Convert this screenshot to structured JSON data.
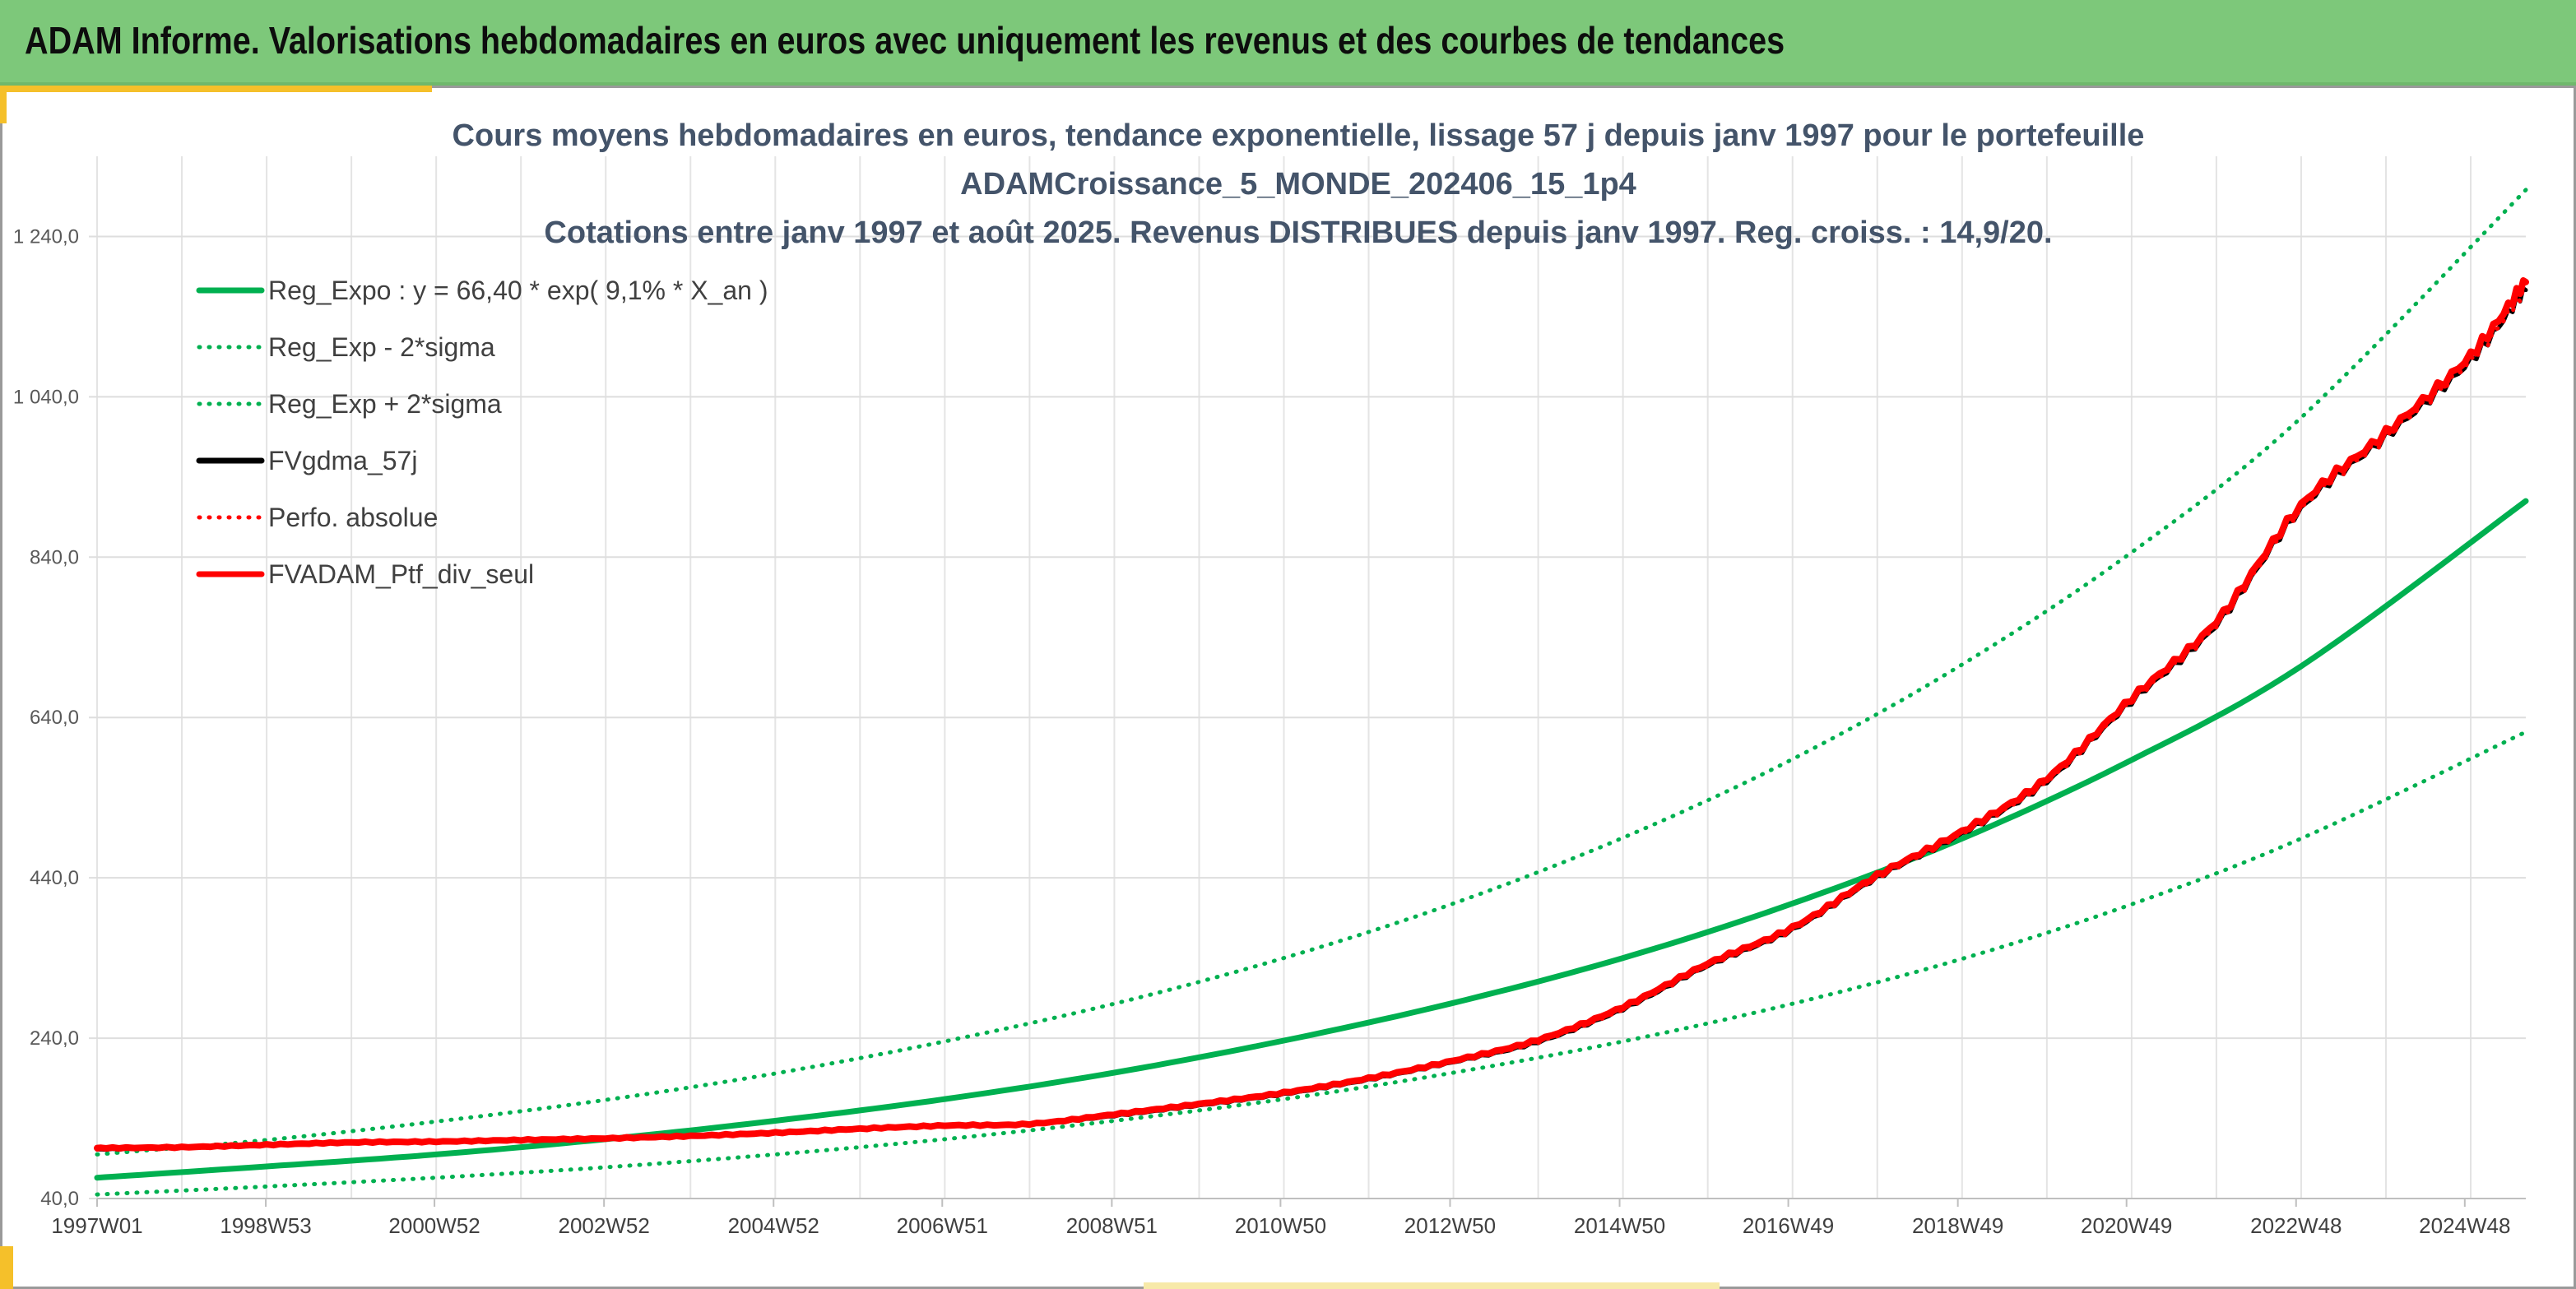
{
  "header": {
    "title": "ADAM Informe. Valorisations hebdomadaires en euros avec uniquement les revenus et des courbes de tendances"
  },
  "colors": {
    "header_bg": "#7dc87a",
    "accent_yellow": "#f5c02a",
    "trend_green": "#00b050",
    "portfolio_red": "#ff0000",
    "smoothed_black": "#000000"
  },
  "chart_data": {
    "type": "line",
    "title_lines": [
      "Cours moyens hebdomadaires en euros, tendance exponentielle, lissage 57 j depuis janv 1997 pour le portefeuille",
      "ADAMCroissance_5_MONDE_202406_15_1p4",
      "Cotations entre janv 1997 et août 2025. Revenus DISTRIBUES depuis janv 1997. Reg. croiss. : 14,9/20."
    ],
    "xlabel": "",
    "ylabel": "",
    "ylim": [
      40,
      1340
    ],
    "xlim": [
      1997.0,
      2025.65
    ],
    "y_ticks": [
      {
        "value": 40,
        "label": "40,0"
      },
      {
        "value": 240,
        "label": "240,0"
      },
      {
        "value": 440,
        "label": "440,0"
      },
      {
        "value": 640,
        "label": "640,0"
      },
      {
        "value": 840,
        "label": "840,0"
      },
      {
        "value": 1040,
        "label": "1 040,0"
      },
      {
        "value": 1240,
        "label": "1 240,0"
      }
    ],
    "x_ticks": [
      {
        "value": 1997.0,
        "label": "1997W01"
      },
      {
        "value": 1998.99,
        "label": "1998W53"
      },
      {
        "value": 2000.98,
        "label": "2000W52"
      },
      {
        "value": 2002.98,
        "label": "2002W52"
      },
      {
        "value": 2004.98,
        "label": "2004W52"
      },
      {
        "value": 2006.97,
        "label": "2006W51"
      },
      {
        "value": 2008.97,
        "label": "2008W51"
      },
      {
        "value": 2010.96,
        "label": "2010W50"
      },
      {
        "value": 2012.96,
        "label": "2012W50"
      },
      {
        "value": 2014.96,
        "label": "2014W50"
      },
      {
        "value": 2016.95,
        "label": "2016W49"
      },
      {
        "value": 2018.95,
        "label": "2018W49"
      },
      {
        "value": 2020.94,
        "label": "2020W49"
      },
      {
        "value": 2022.94,
        "label": "2022W48"
      },
      {
        "value": 2024.93,
        "label": "2024W48"
      }
    ],
    "grid": true,
    "legend_position": "top-left",
    "series": [
      {
        "name": "Reg_Expo : y = 66,40 * exp( 9,1% *  X_an )",
        "style": "solid",
        "color": "#00b050",
        "x": [
          1997,
          1999,
          2001,
          2003,
          2005,
          2007,
          2009,
          2011,
          2013,
          2015,
          2017,
          2019,
          2021,
          2023,
          2025.65
        ],
        "y": [
          66,
          80,
          95,
          114,
          137,
          164,
          197,
          237,
          284,
          340,
          408,
          489,
          587,
          704,
          910
        ]
      },
      {
        "name": "Reg_Exp - 2*sigma",
        "style": "dotted",
        "color": "#00b050",
        "x": [
          1997,
          1999,
          2001,
          2003,
          2005,
          2007,
          2009,
          2011,
          2013,
          2015,
          2017,
          2019,
          2021,
          2023,
          2025.65
        ],
        "y": [
          45,
          55,
          66,
          79,
          95,
          114,
          137,
          164,
          197,
          236,
          283,
          339,
          407,
          489,
          622
        ]
      },
      {
        "name": "Reg_Exp + 2*sigma",
        "style": "dotted",
        "color": "#00b050",
        "x": [
          1997,
          1999,
          2001,
          2003,
          2005,
          2007,
          2009,
          2011,
          2013,
          2015,
          2017,
          2019,
          2021,
          2023,
          2025.65
        ],
        "y": [
          95,
          113,
          136,
          163,
          196,
          236,
          283,
          340,
          408,
          490,
          588,
          706,
          846,
          1014,
          1298
        ]
      },
      {
        "name": "FVgdma_57j",
        "style": "solid",
        "color": "#000000",
        "x": [
          1997,
          1998,
          1999,
          2000,
          2001,
          2002,
          2003,
          2004,
          2005,
          2006,
          2007,
          2008,
          2009,
          2010,
          2011,
          2012,
          2013,
          2014,
          2015,
          2016,
          2017,
          2018,
          2019,
          2020,
          2021,
          2022,
          2023,
          2024,
          2025,
          2025.65
        ],
        "y": [
          101,
          103,
          106,
          109,
          110,
          112,
          114,
          117,
          121,
          126,
          130,
          132,
          143,
          156,
          170,
          188,
          210,
          235,
          276,
          330,
          375,
          440,
          495,
          560,
          660,
          755,
          900,
          990,
          1085,
          1175
        ]
      },
      {
        "name": "Perfo. absolue",
        "style": "dotted",
        "color": "#ff0000",
        "x": [
          1997,
          1998,
          1999,
          2000,
          2001,
          2002,
          2003,
          2004,
          2005,
          2006,
          2007,
          2008,
          2009,
          2010,
          2011,
          2012,
          2013,
          2014,
          2015,
          2016,
          2017,
          2018,
          2019,
          2020,
          2021,
          2022,
          2023,
          2024,
          2025,
          2025.65
        ],
        "y": [
          101,
          103,
          106,
          109,
          110,
          112,
          114,
          117,
          121,
          126,
          130,
          132,
          143,
          156,
          170,
          188,
          210,
          235,
          276,
          330,
          375,
          440,
          495,
          560,
          660,
          755,
          900,
          990,
          1085,
          1175
        ]
      },
      {
        "name": "FVADAM_Ptf_div_seul",
        "style": "solid",
        "color": "#ff0000",
        "x": [
          1997,
          1998,
          1999,
          2000,
          2001,
          2002,
          2003,
          2004,
          2005,
          2006,
          2007,
          2008,
          2009,
          2010,
          2011,
          2012,
          2013,
          2014,
          2015,
          2016,
          2017,
          2018,
          2019,
          2020,
          2021,
          2022,
          2023,
          2024,
          2025,
          2025.65
        ],
        "y": [
          103,
          104,
          107,
          110,
          111,
          113,
          115,
          118,
          122,
          127,
          131,
          133,
          145,
          158,
          172,
          190,
          212,
          238,
          279,
          333,
          378,
          443,
          498,
          564,
          664,
          760,
          905,
          995,
          1092,
          1185
        ]
      }
    ]
  }
}
